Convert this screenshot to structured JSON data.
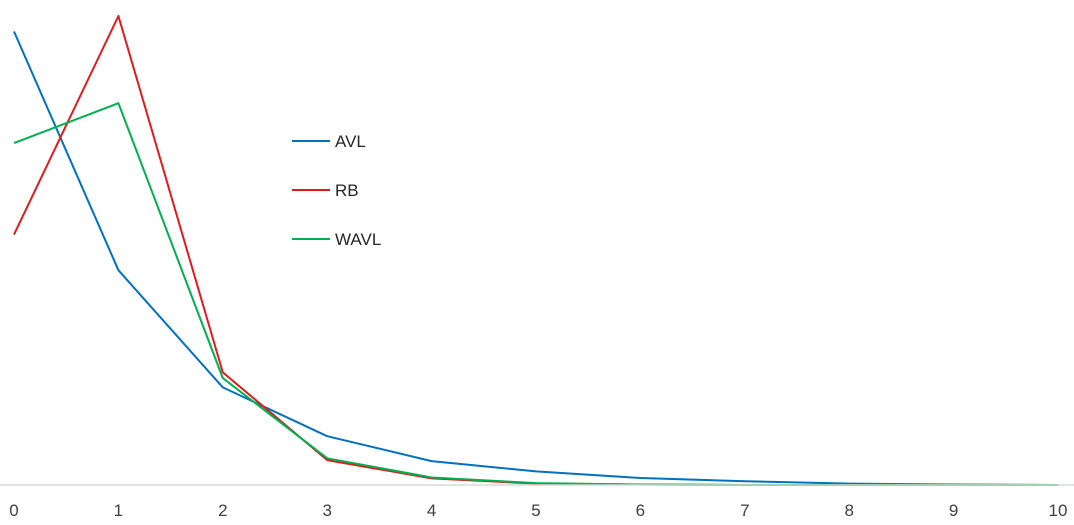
{
  "chart_data": {
    "type": "line",
    "title": "",
    "xlabel": "",
    "ylabel": "",
    "x": [
      0,
      1,
      2,
      3,
      4,
      5,
      6,
      7,
      8,
      9,
      10
    ],
    "x_tick_labels": [
      "0",
      "1",
      "2",
      "3",
      "4",
      "5",
      "6",
      "7",
      "8",
      "9",
      "10"
    ],
    "ylim": [
      0,
      1
    ],
    "y_axis_visible": false,
    "grid": false,
    "legend_position": "center-left",
    "series": [
      {
        "name": "AVL",
        "color": "#0070C0",
        "values": [
          0.967,
          0.458,
          0.208,
          0.104,
          0.051,
          0.029,
          0.015,
          0.008,
          0.003,
          0.001,
          0.0
        ]
      },
      {
        "name": "RB",
        "color": "#E31A1C",
        "values": [
          0.534,
          1.0,
          0.24,
          0.053,
          0.014,
          0.003,
          0.001,
          0.0,
          0.0,
          0.0,
          0.0
        ]
      },
      {
        "name": "WAVL",
        "color": "#00B050",
        "values": [
          0.729,
          0.814,
          0.228,
          0.057,
          0.016,
          0.004,
          0.001,
          0.0,
          0.0,
          0.0,
          0.0
        ]
      }
    ]
  }
}
